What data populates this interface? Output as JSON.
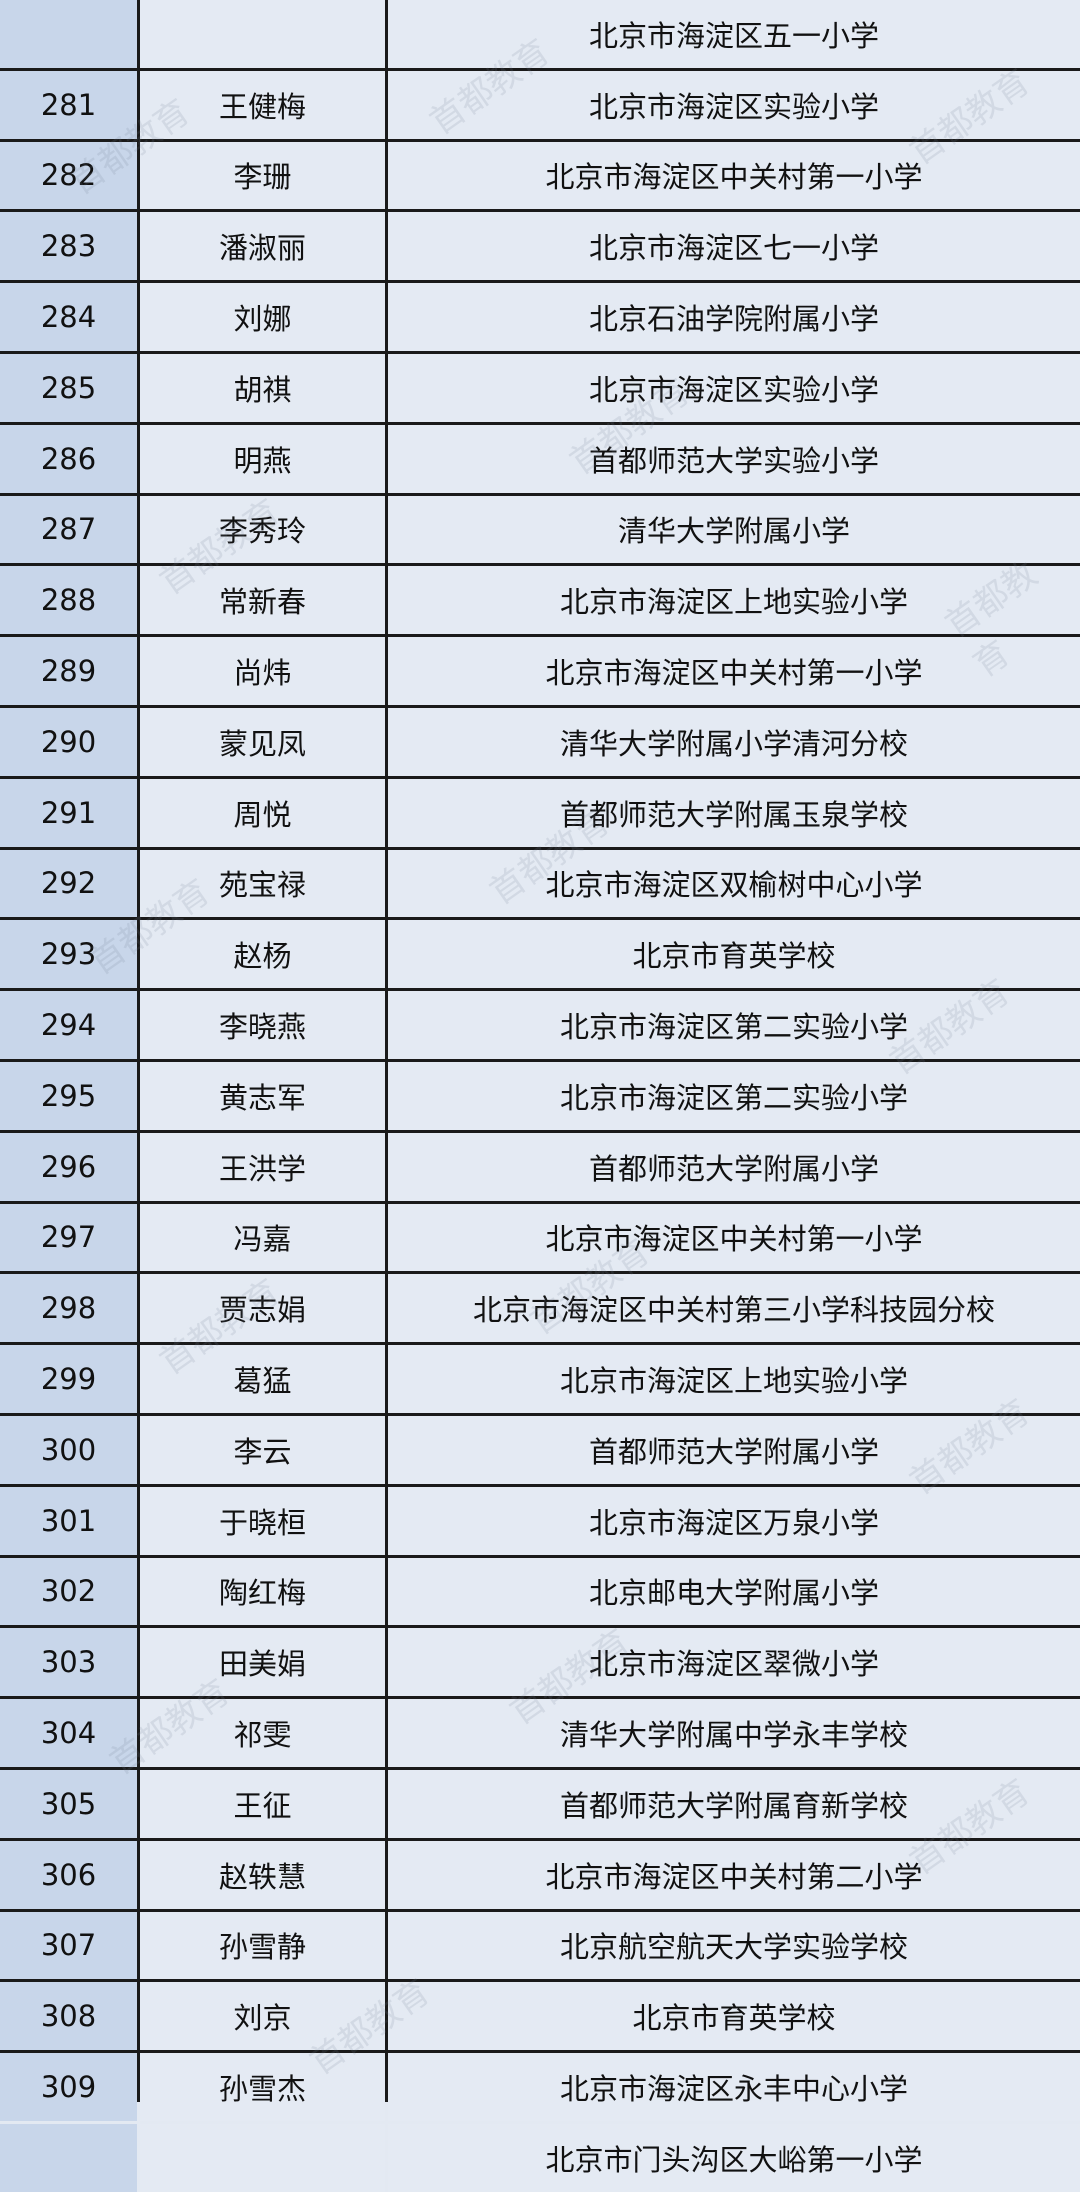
{
  "rows": [
    {
      "no": "",
      "name": "",
      "school": "北京市海淀区五一小学"
    },
    {
      "no": "281",
      "name": "王健梅",
      "school": "北京市海淀区实验小学"
    },
    {
      "no": "282",
      "name": "李珊",
      "school": "北京市海淀区中关村第一小学"
    },
    {
      "no": "283",
      "name": "潘淑丽",
      "school": "北京市海淀区七一小学"
    },
    {
      "no": "284",
      "name": "刘娜",
      "school": "北京石油学院附属小学"
    },
    {
      "no": "285",
      "name": "胡祺",
      "school": "北京市海淀区实验小学"
    },
    {
      "no": "286",
      "name": "明燕",
      "school": "首都师范大学实验小学"
    },
    {
      "no": "287",
      "name": "李秀玲",
      "school": "清华大学附属小学"
    },
    {
      "no": "288",
      "name": "常新春",
      "school": "北京市海淀区上地实验小学"
    },
    {
      "no": "289",
      "name": "尚炜",
      "school": "北京市海淀区中关村第一小学"
    },
    {
      "no": "290",
      "name": "蒙见凤",
      "school": "清华大学附属小学清河分校"
    },
    {
      "no": "291",
      "name": "周悦",
      "school": "首都师范大学附属玉泉学校"
    },
    {
      "no": "292",
      "name": "苑宝禄",
      "school": "北京市海淀区双榆树中心小学"
    },
    {
      "no": "293",
      "name": "赵杨",
      "school": "北京市育英学校"
    },
    {
      "no": "294",
      "name": "李晓燕",
      "school": "北京市海淀区第二实验小学"
    },
    {
      "no": "295",
      "name": "黄志军",
      "school": "北京市海淀区第二实验小学"
    },
    {
      "no": "296",
      "name": "王洪学",
      "school": "首都师范大学附属小学"
    },
    {
      "no": "297",
      "name": "冯嘉",
      "school": "北京市海淀区中关村第一小学"
    },
    {
      "no": "298",
      "name": "贾志娟",
      "school": "北京市海淀区中关村第三小学科技园分校"
    },
    {
      "no": "299",
      "name": "葛猛",
      "school": "北京市海淀区上地实验小学"
    },
    {
      "no": "300",
      "name": "李云",
      "school": "首都师范大学附属小学"
    },
    {
      "no": "301",
      "name": "于晓桓",
      "school": "北京市海淀区万泉小学"
    },
    {
      "no": "302",
      "name": "陶红梅",
      "school": "北京邮电大学附属小学"
    },
    {
      "no": "303",
      "name": "田美娟",
      "school": "北京市海淀区翠微小学"
    },
    {
      "no": "304",
      "name": "祁雯",
      "school": "清华大学附属中学永丰学校"
    },
    {
      "no": "305",
      "name": "王征",
      "school": "首都师范大学附属育新学校"
    },
    {
      "no": "306",
      "name": "赵轶慧",
      "school": "北京市海淀区中关村第二小学"
    },
    {
      "no": "307",
      "name": "孙雪静",
      "school": "北京航空航天大学实验学校"
    },
    {
      "no": "308",
      "name": "刘京",
      "school": "北京市育英学校"
    },
    {
      "no": "309",
      "name": "孙雪杰",
      "school": "北京市海淀区永丰中心小学"
    },
    {
      "no": "",
      "name": "",
      "school": "北京市门头沟区大峪第一小学"
    }
  ],
  "watermark": "首都教育"
}
